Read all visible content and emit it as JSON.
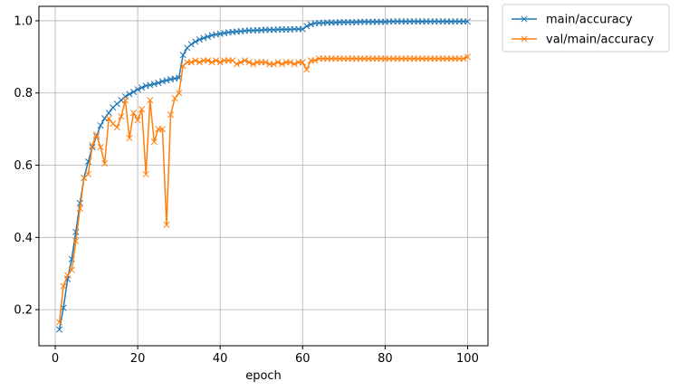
{
  "chart_data": {
    "type": "line",
    "xlabel": "epoch",
    "ylabel": "",
    "xlim": [
      -3.95,
      104.95
    ],
    "ylim": [
      0.1,
      1.04
    ],
    "xticks": [
      0,
      20,
      40,
      60,
      80,
      100
    ],
    "yticks": [
      0.2,
      0.4,
      0.6,
      0.8,
      1.0
    ],
    "grid": true,
    "legend_position": "outside-top-right",
    "series": [
      {
        "name": "main/accuracy",
        "color": "#1f77b4",
        "marker": "x",
        "x": [
          1,
          2,
          3,
          4,
          5,
          6,
          7,
          8,
          9,
          10,
          11,
          12,
          13,
          14,
          15,
          16,
          17,
          18,
          19,
          20,
          21,
          22,
          23,
          24,
          25,
          26,
          27,
          28,
          29,
          30,
          31,
          32,
          33,
          34,
          35,
          36,
          37,
          38,
          39,
          40,
          41,
          42,
          43,
          44,
          45,
          46,
          47,
          48,
          49,
          50,
          51,
          52,
          53,
          54,
          55,
          56,
          57,
          58,
          59,
          60,
          61,
          62,
          63,
          64,
          65,
          66,
          67,
          68,
          69,
          70,
          71,
          72,
          73,
          74,
          75,
          76,
          77,
          78,
          79,
          80,
          81,
          82,
          83,
          84,
          85,
          86,
          87,
          88,
          89,
          90,
          91,
          92,
          93,
          94,
          95,
          96,
          97,
          98,
          99,
          100
        ],
        "values": [
          0.145,
          0.205,
          0.285,
          0.34,
          0.415,
          0.495,
          0.565,
          0.61,
          0.65,
          0.68,
          0.71,
          0.73,
          0.745,
          0.76,
          0.77,
          0.78,
          0.79,
          0.797,
          0.803,
          0.81,
          0.815,
          0.82,
          0.822,
          0.825,
          0.828,
          0.832,
          0.835,
          0.838,
          0.84,
          0.842,
          0.905,
          0.925,
          0.935,
          0.942,
          0.948,
          0.952,
          0.956,
          0.96,
          0.962,
          0.964,
          0.966,
          0.968,
          0.969,
          0.97,
          0.971,
          0.972,
          0.973,
          0.973,
          0.974,
          0.974,
          0.975,
          0.975,
          0.975,
          0.976,
          0.976,
          0.976,
          0.976,
          0.977,
          0.977,
          0.977,
          0.985,
          0.99,
          0.993,
          0.994,
          0.994,
          0.995,
          0.995,
          0.995,
          0.996,
          0.996,
          0.996,
          0.996,
          0.996,
          0.997,
          0.997,
          0.997,
          0.997,
          0.997,
          0.997,
          0.997,
          0.998,
          0.998,
          0.998,
          0.998,
          0.998,
          0.998,
          0.998,
          0.998,
          0.998,
          0.998,
          0.998,
          0.998,
          0.998,
          0.998,
          0.998,
          0.998,
          0.998,
          0.998,
          0.998,
          0.998
        ]
      },
      {
        "name": "val/main/accuracy",
        "color": "#ff7f0e",
        "marker": "x",
        "x": [
          1,
          2,
          3,
          4,
          5,
          6,
          7,
          8,
          9,
          10,
          11,
          12,
          13,
          14,
          15,
          16,
          17,
          18,
          19,
          20,
          21,
          22,
          23,
          24,
          25,
          26,
          27,
          28,
          29,
          30,
          31,
          32,
          33,
          34,
          35,
          36,
          37,
          38,
          39,
          40,
          41,
          42,
          43,
          44,
          45,
          46,
          47,
          48,
          49,
          50,
          51,
          52,
          53,
          54,
          55,
          56,
          57,
          58,
          59,
          60,
          61,
          62,
          63,
          64,
          65,
          66,
          67,
          68,
          69,
          70,
          71,
          72,
          73,
          74,
          75,
          76,
          77,
          78,
          79,
          80,
          81,
          82,
          83,
          84,
          85,
          86,
          87,
          88,
          89,
          90,
          91,
          92,
          93,
          94,
          95,
          96,
          97,
          98,
          99,
          100
        ],
        "values": [
          0.165,
          0.265,
          0.295,
          0.31,
          0.39,
          0.48,
          0.565,
          0.575,
          0.655,
          0.685,
          0.65,
          0.605,
          0.73,
          0.715,
          0.705,
          0.735,
          0.78,
          0.675,
          0.745,
          0.725,
          0.755,
          0.575,
          0.78,
          0.665,
          0.7,
          0.7,
          0.435,
          0.74,
          0.785,
          0.8,
          0.875,
          0.885,
          0.885,
          0.89,
          0.885,
          0.89,
          0.89,
          0.885,
          0.89,
          0.885,
          0.89,
          0.89,
          0.89,
          0.88,
          0.885,
          0.89,
          0.885,
          0.88,
          0.885,
          0.885,
          0.885,
          0.88,
          0.88,
          0.885,
          0.88,
          0.885,
          0.885,
          0.88,
          0.885,
          0.885,
          0.865,
          0.89,
          0.89,
          0.895,
          0.895,
          0.895,
          0.895,
          0.895,
          0.895,
          0.895,
          0.895,
          0.895,
          0.895,
          0.895,
          0.895,
          0.895,
          0.895,
          0.895,
          0.895,
          0.895,
          0.895,
          0.895,
          0.895,
          0.895,
          0.895,
          0.895,
          0.895,
          0.895,
          0.895,
          0.895,
          0.895,
          0.895,
          0.895,
          0.895,
          0.895,
          0.895,
          0.895,
          0.895,
          0.895,
          0.9
        ]
      }
    ]
  }
}
